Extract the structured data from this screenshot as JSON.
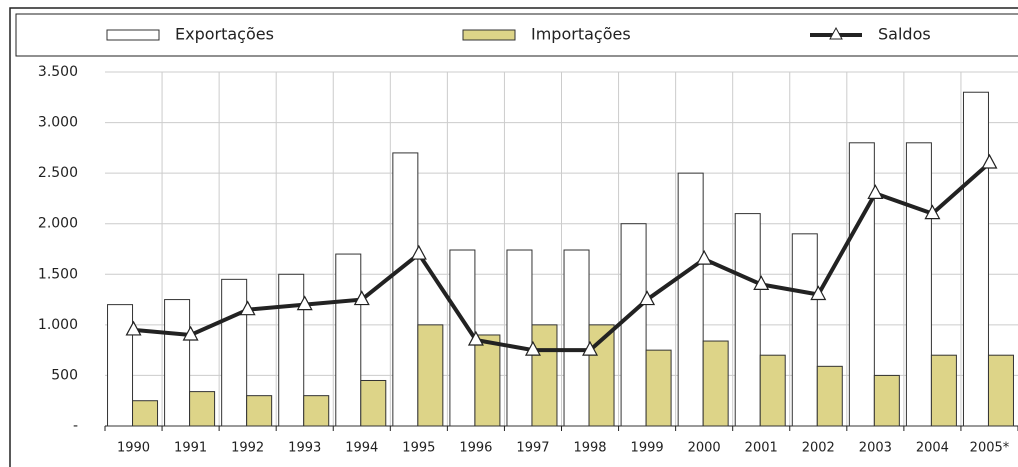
{
  "chart_data": {
    "type": "bar_line",
    "categories": [
      "1990",
      "1991",
      "1992",
      "1993",
      "1994",
      "1995",
      "1996",
      "1997",
      "1998",
      "1999",
      "2000",
      "2001",
      "2002",
      "2003",
      "2004",
      "2005*"
    ],
    "series": [
      {
        "name": "Exportações",
        "type": "bar",
        "color": "#ffffff",
        "values": [
          1200,
          1250,
          1450,
          1500,
          1700,
          2700,
          1740,
          1740,
          1740,
          2000,
          2500,
          2100,
          1900,
          2800,
          2800,
          3300
        ]
      },
      {
        "name": "Importações",
        "type": "bar",
        "color": "#ddd488",
        "values": [
          250,
          340,
          300,
          300,
          450,
          1000,
          900,
          1000,
          1000,
          750,
          840,
          700,
          590,
          500,
          700,
          700
        ]
      },
      {
        "name": "Saldos",
        "type": "line",
        "color": "#222222",
        "values": [
          950,
          900,
          1150,
          1200,
          1250,
          1700,
          850,
          750,
          750,
          1250,
          1650,
          1400,
          1300,
          2300,
          2100,
          2600
        ]
      }
    ],
    "ylim": [
      0,
      3500
    ],
    "yticks": [
      {
        "value": 0,
        "label": "-"
      },
      500,
      {
        "value": 1000,
        "label": "1.000"
      },
      {
        "value": 1500,
        "label": "1.500"
      },
      {
        "value": 2000,
        "label": "2.000"
      },
      {
        "value": 2500,
        "label": "2.500"
      },
      {
        "value": 3000,
        "label": "3.000"
      },
      {
        "value": 3500,
        "label": "3.500"
      }
    ],
    "grid": true
  }
}
